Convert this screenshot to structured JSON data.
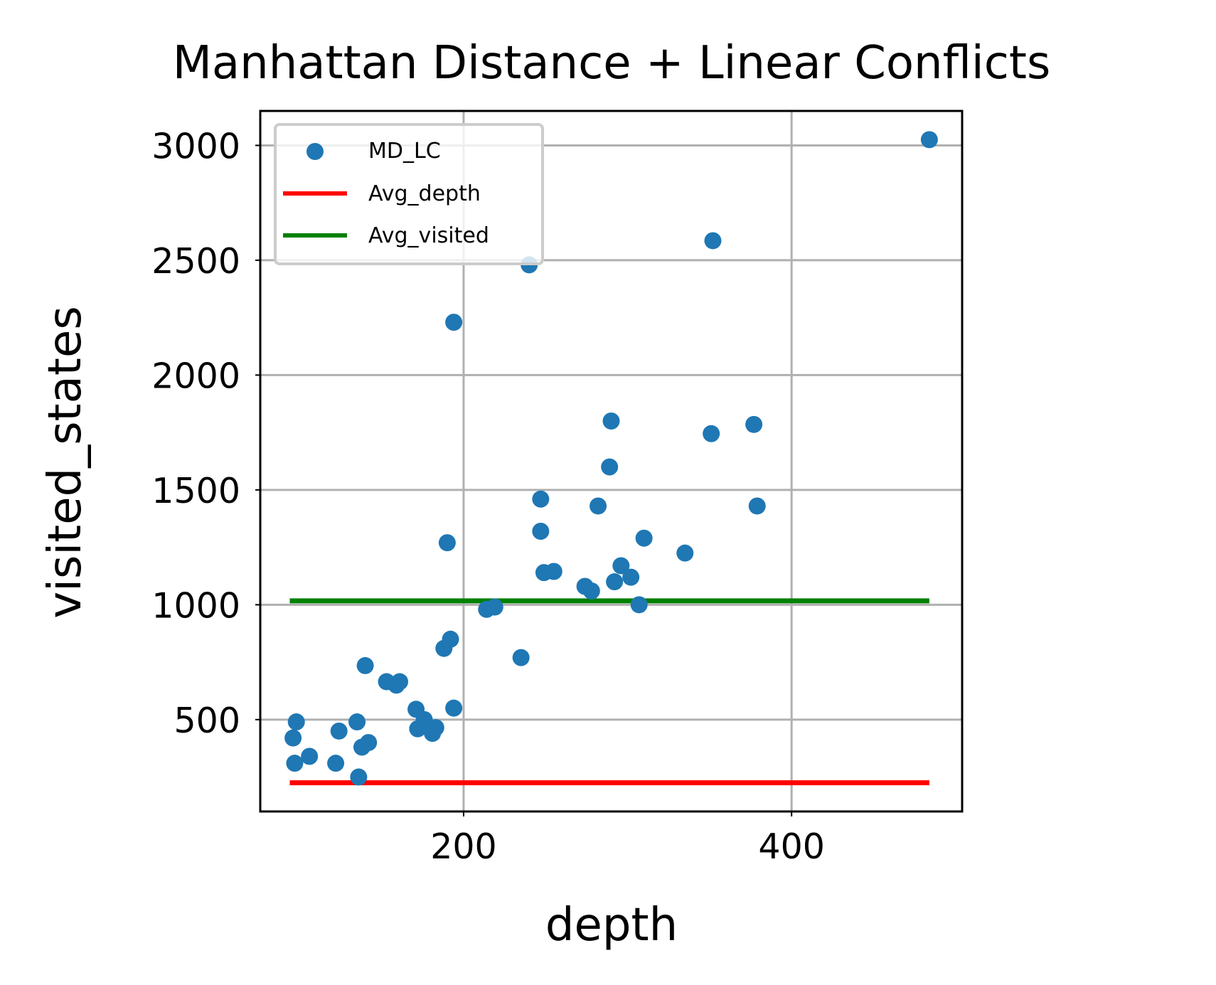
{
  "chart_data": {
    "type": "scatter",
    "title": "Manhattan Distance + Linear Conflicts",
    "xlabel": "depth",
    "ylabel": "visited_states",
    "xlim": [
      76,
      504
    ],
    "ylim": [
      100,
      3150
    ],
    "xticks": [
      200,
      400
    ],
    "yticks": [
      500,
      1000,
      1500,
      2000,
      2500,
      3000
    ],
    "grid": true,
    "legend_position": "upper-left",
    "series": [
      {
        "name": "MD_LC",
        "type": "scatter",
        "color": "#1f77b4",
        "points": [
          [
            96,
            420
          ],
          [
            97,
            310
          ],
          [
            98,
            490
          ],
          [
            106,
            340
          ],
          [
            122,
            310
          ],
          [
            124,
            450
          ],
          [
            135,
            490
          ],
          [
            136,
            250
          ],
          [
            138,
            380
          ],
          [
            140,
            735
          ],
          [
            142,
            400
          ],
          [
            153,
            665
          ],
          [
            159,
            650
          ],
          [
            161,
            665
          ],
          [
            171,
            545
          ],
          [
            172,
            460
          ],
          [
            176,
            500
          ],
          [
            181,
            440
          ],
          [
            183,
            465
          ],
          [
            188,
            810
          ],
          [
            190,
            1270
          ],
          [
            192,
            850
          ],
          [
            194,
            2230
          ],
          [
            194,
            550
          ],
          [
            214,
            980
          ],
          [
            219,
            990
          ],
          [
            235,
            770
          ],
          [
            240,
            2480
          ],
          [
            247,
            1460
          ],
          [
            247,
            1320
          ],
          [
            249,
            1140
          ],
          [
            255,
            1145
          ],
          [
            274,
            1080
          ],
          [
            278,
            1060
          ],
          [
            282,
            1430
          ],
          [
            289,
            1600
          ],
          [
            290,
            1800
          ],
          [
            292,
            1100
          ],
          [
            296,
            1170
          ],
          [
            302,
            1120
          ],
          [
            307,
            1000
          ],
          [
            310,
            1290
          ],
          [
            335,
            1225
          ],
          [
            351,
            1745
          ],
          [
            352,
            2585
          ],
          [
            377,
            1785
          ],
          [
            379,
            1430
          ],
          [
            484,
            3025
          ]
        ]
      },
      {
        "name": "Avg_depth",
        "type": "line",
        "color": "#ff0000",
        "x": [
          94,
          484
        ],
        "y": [
          225,
          225
        ]
      },
      {
        "name": "Avg_visited",
        "type": "line",
        "color": "#008000",
        "x": [
          94,
          484
        ],
        "y": [
          1017,
          1017
        ]
      }
    ]
  }
}
